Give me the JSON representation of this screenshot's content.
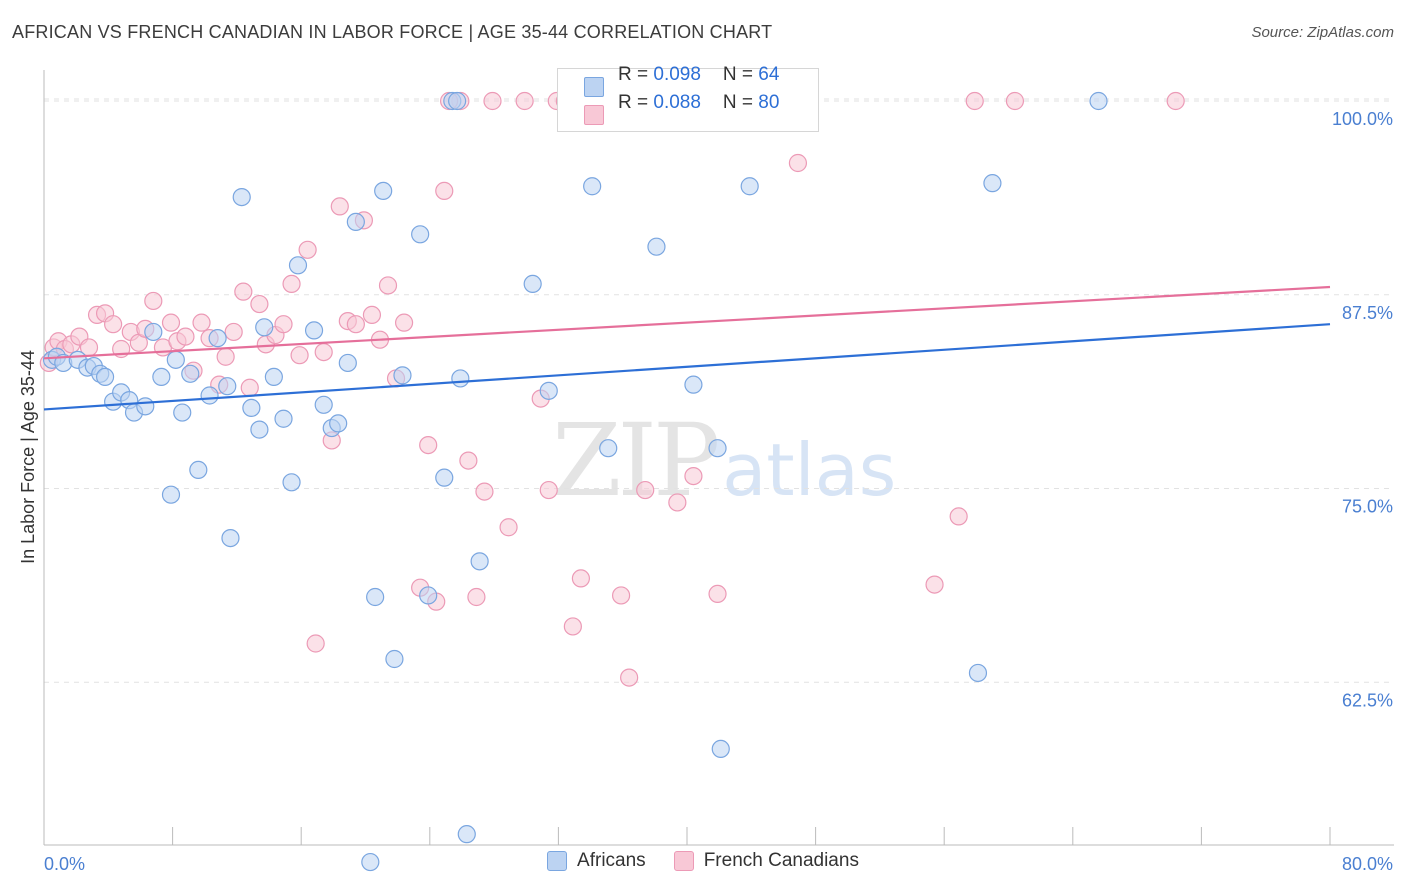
{
  "header": {
    "title": "AFRICAN VS FRENCH CANADIAN IN LABOR FORCE | AGE 35-44 CORRELATION CHART",
    "source": "Source: ZipAtlas.com"
  },
  "watermark": {
    "zip": "ZIP",
    "atlas": "atlas"
  },
  "stats": {
    "africans": {
      "r_label": "R = ",
      "r_value": "0.098",
      "n_label": "N = ",
      "n_value": "64"
    },
    "french": {
      "r_label": "R = ",
      "r_value": "0.088",
      "n_label": "N = ",
      "n_value": "80"
    }
  },
  "legend": {
    "africans": "Africans",
    "french": "French Canadians"
  },
  "colors": {
    "blue_fill": "#bcd3f2",
    "blue_stroke": "#7aa6e0",
    "blue_line": "#2d6fd6",
    "pink_fill": "#f8c8d6",
    "pink_stroke": "#ec9ab6",
    "pink_line": "#e56f9a",
    "tick_text": "#4a7fd1",
    "grid": "#e2e2e2"
  },
  "chart_data": {
    "type": "scatter",
    "title": "AFRICAN VS FRENCH CANADIAN IN LABOR FORCE | AGE 35-44 CORRELATION CHART",
    "xlabel": "",
    "ylabel": "In Labor Force | Age 35-44",
    "xlim": [
      0,
      80
    ],
    "ylim": [
      52,
      102
    ],
    "x_tick_labels": [
      {
        "value": 0,
        "label": "0.0%"
      },
      {
        "value": 80,
        "label": "80.0%"
      }
    ],
    "y_ticks": [
      {
        "value": 100,
        "label": "100.0%"
      },
      {
        "value": 87.5,
        "label": "87.5%"
      },
      {
        "value": 75,
        "label": "75.0%"
      },
      {
        "value": 62.5,
        "label": "62.5%"
      }
    ],
    "series": [
      {
        "name": "Africans",
        "trend": {
          "x": [
            0,
            80
          ],
          "y": [
            80.1,
            85.6
          ]
        },
        "points": [
          [
            0.5,
            83.3
          ],
          [
            0.8,
            83.5
          ],
          [
            1.2,
            83.1
          ],
          [
            2.1,
            83.3
          ],
          [
            2.7,
            82.8
          ],
          [
            3.1,
            82.9
          ],
          [
            3.5,
            82.4
          ],
          [
            3.8,
            82.2
          ],
          [
            4.3,
            80.6
          ],
          [
            4.8,
            81.2
          ],
          [
            5.3,
            80.7
          ],
          [
            5.6,
            79.9
          ],
          [
            6.3,
            80.3
          ],
          [
            6.8,
            85.1
          ],
          [
            7.3,
            82.2
          ],
          [
            7.9,
            74.6
          ],
          [
            8.2,
            83.3
          ],
          [
            8.6,
            79.9
          ],
          [
            9.1,
            82.4
          ],
          [
            9.6,
            76.2
          ],
          [
            10.3,
            81.0
          ],
          [
            10.8,
            84.7
          ],
          [
            11.4,
            81.6
          ],
          [
            11.6,
            71.8
          ],
          [
            12.3,
            93.8
          ],
          [
            12.9,
            80.2
          ],
          [
            13.4,
            78.8
          ],
          [
            13.7,
            85.4
          ],
          [
            14.3,
            82.2
          ],
          [
            14.9,
            79.5
          ],
          [
            15.4,
            75.4
          ],
          [
            15.8,
            89.4
          ],
          [
            16.8,
            85.2
          ],
          [
            17.4,
            80.4
          ],
          [
            17.9,
            78.9
          ],
          [
            18.3,
            79.2
          ],
          [
            18.9,
            83.1
          ],
          [
            19.4,
            92.2
          ],
          [
            20.3,
            50.9
          ],
          [
            20.6,
            68.0
          ],
          [
            21.1,
            94.2
          ],
          [
            21.8,
            64.0
          ],
          [
            22.3,
            82.3
          ],
          [
            23.4,
            91.4
          ],
          [
            23.9,
            68.1
          ],
          [
            24.9,
            75.7
          ],
          [
            25.4,
            100
          ],
          [
            25.9,
            82.1
          ],
          [
            26.3,
            52.7
          ],
          [
            27.1,
            70.3
          ],
          [
            30.4,
            88.2
          ],
          [
            31.4,
            81.3
          ],
          [
            34.1,
            94.5
          ],
          [
            35.1,
            77.6
          ],
          [
            38.1,
            90.6
          ],
          [
            40.4,
            81.7
          ],
          [
            41.9,
            77.6
          ],
          [
            42.1,
            58.2
          ],
          [
            43.9,
            94.5
          ],
          [
            58.1,
            63.1
          ],
          [
            59.0,
            94.7
          ],
          [
            65.6,
            100
          ],
          [
            25.7,
            100
          ],
          [
            35.8,
            100
          ]
        ]
      },
      {
        "name": "French Canadians",
        "trend": {
          "x": [
            0,
            80
          ],
          "y": [
            83.4,
            88.0
          ]
        },
        "points": [
          [
            0.3,
            83.1
          ],
          [
            0.6,
            84.1
          ],
          [
            0.9,
            84.5
          ],
          [
            1.3,
            84.0
          ],
          [
            1.7,
            84.3
          ],
          [
            2.2,
            84.8
          ],
          [
            2.8,
            84.1
          ],
          [
            3.3,
            86.2
          ],
          [
            3.8,
            86.3
          ],
          [
            4.3,
            85.6
          ],
          [
            4.8,
            84.0
          ],
          [
            5.4,
            85.1
          ],
          [
            5.9,
            84.4
          ],
          [
            6.3,
            85.3
          ],
          [
            6.8,
            87.1
          ],
          [
            7.4,
            84.1
          ],
          [
            7.9,
            85.7
          ],
          [
            8.3,
            84.5
          ],
          [
            8.8,
            84.8
          ],
          [
            9.3,
            82.6
          ],
          [
            9.8,
            85.7
          ],
          [
            10.3,
            84.7
          ],
          [
            10.9,
            81.7
          ],
          [
            11.3,
            83.5
          ],
          [
            11.8,
            85.1
          ],
          [
            12.4,
            87.7
          ],
          [
            12.8,
            81.5
          ],
          [
            13.4,
            86.9
          ],
          [
            13.8,
            84.3
          ],
          [
            14.4,
            84.9
          ],
          [
            14.9,
            85.6
          ],
          [
            15.4,
            88.2
          ],
          [
            15.9,
            83.6
          ],
          [
            16.4,
            90.4
          ],
          [
            16.9,
            65.0
          ],
          [
            17.4,
            83.8
          ],
          [
            17.9,
            78.1
          ],
          [
            18.4,
            93.2
          ],
          [
            18.9,
            85.8
          ],
          [
            19.4,
            85.6
          ],
          [
            19.9,
            92.3
          ],
          [
            20.4,
            86.2
          ],
          [
            20.9,
            84.6
          ],
          [
            21.4,
            88.1
          ],
          [
            21.9,
            82.1
          ],
          [
            22.4,
            85.7
          ],
          [
            23.4,
            68.6
          ],
          [
            23.9,
            77.8
          ],
          [
            24.4,
            67.7
          ],
          [
            24.9,
            94.2
          ],
          [
            25.9,
            100
          ],
          [
            26.4,
            76.8
          ],
          [
            26.9,
            68.0
          ],
          [
            27.4,
            74.8
          ],
          [
            27.9,
            100
          ],
          [
            28.9,
            72.5
          ],
          [
            29.9,
            100
          ],
          [
            30.9,
            80.8
          ],
          [
            31.4,
            74.9
          ],
          [
            31.9,
            100
          ],
          [
            32.4,
            100
          ],
          [
            32.9,
            66.1
          ],
          [
            33.4,
            69.2
          ],
          [
            34.4,
            100
          ],
          [
            35.4,
            100
          ],
          [
            35.9,
            68.1
          ],
          [
            36.4,
            62.8
          ],
          [
            37.4,
            74.9
          ],
          [
            38.4,
            100
          ],
          [
            39.4,
            74.1
          ],
          [
            40.4,
            75.8
          ],
          [
            41.4,
            100
          ],
          [
            41.9,
            68.2
          ],
          [
            46.9,
            96.0
          ],
          [
            55.4,
            68.8
          ],
          [
            56.9,
            73.2
          ],
          [
            57.9,
            100
          ],
          [
            60.4,
            100
          ],
          [
            70.4,
            100
          ],
          [
            25.2,
            100
          ]
        ]
      }
    ]
  }
}
